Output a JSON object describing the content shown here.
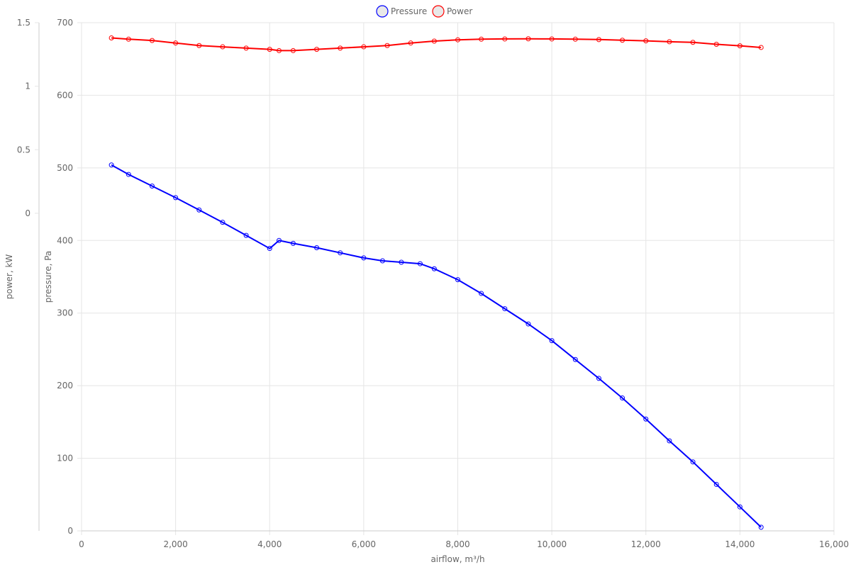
{
  "chart_data": {
    "type": "line",
    "legend_position": "top-center",
    "grid": true,
    "xlabel": "airflow, m³/h",
    "xlim": [
      0,
      16000
    ],
    "x_ticks": [
      0,
      2000,
      4000,
      6000,
      8000,
      10000,
      12000,
      14000,
      16000
    ],
    "x_tick_labels": [
      "0",
      "2,000",
      "4,000",
      "6,000",
      "8,000",
      "10,000",
      "12,000",
      "14,000",
      "16,000"
    ],
    "y_pressure": {
      "label": "pressure, Pa",
      "lim": [
        0,
        700
      ],
      "ticks": [
        0,
        100,
        200,
        300,
        400,
        500,
        600,
        700
      ],
      "tick_labels": [
        "0",
        "100",
        "200",
        "300",
        "400",
        "500",
        "600",
        "700"
      ]
    },
    "y_power": {
      "label": "power, kW",
      "lim": [
        -2.5,
        1.5
      ],
      "ticks": [
        0,
        0.5,
        1,
        1.5
      ],
      "tick_labels": [
        "0",
        "0.5",
        "1",
        "1.5"
      ]
    },
    "series": [
      {
        "name": "Pressure",
        "color": "#0000ff",
        "axis": "pressure",
        "x": [
          635,
          1000,
          1500,
          2000,
          2500,
          3000,
          3500,
          4000,
          4200,
          4500,
          5000,
          5500,
          6000,
          6400,
          6800,
          7200,
          7500,
          8000,
          8500,
          9000,
          9500,
          10000,
          10500,
          11000,
          11500,
          12000,
          12500,
          13000,
          13500,
          14000,
          14450
        ],
        "y": [
          504,
          491,
          475,
          459,
          442,
          425,
          407,
          389,
          400,
          396,
          390,
          383,
          376,
          372,
          370,
          368,
          361,
          346,
          327,
          306,
          285,
          262,
          236,
          210,
          183,
          154,
          124,
          95,
          64,
          33,
          5
        ]
      },
      {
        "name": "Power",
        "color": "#ff0000",
        "axis": "power",
        "x": [
          635,
          1000,
          1500,
          2000,
          2500,
          3000,
          3500,
          4000,
          4200,
          4500,
          5000,
          5500,
          6000,
          6500,
          7000,
          7500,
          8000,
          8500,
          9000,
          9500,
          10000,
          10500,
          11000,
          11500,
          12000,
          12500,
          13000,
          13500,
          14000,
          14450
        ],
        "y": [
          1.38,
          1.37,
          1.36,
          1.34,
          1.32,
          1.31,
          1.3,
          1.29,
          1.28,
          1.28,
          1.29,
          1.3,
          1.31,
          1.32,
          1.34,
          1.355,
          1.365,
          1.37,
          1.372,
          1.373,
          1.372,
          1.37,
          1.367,
          1.362,
          1.357,
          1.35,
          1.345,
          1.33,
          1.318,
          1.305
        ]
      }
    ]
  }
}
